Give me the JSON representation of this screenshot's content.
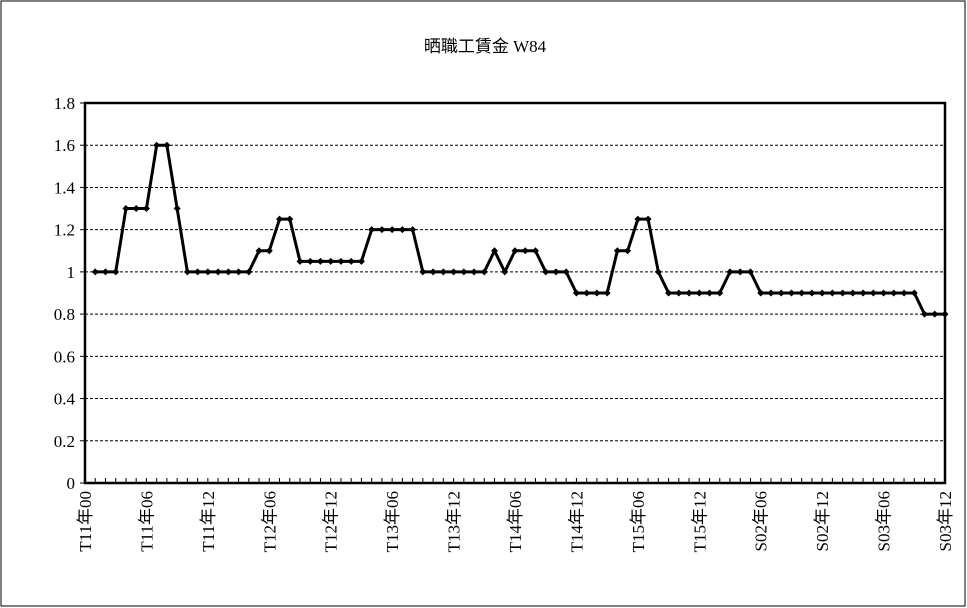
{
  "chart_data": {
    "type": "line",
    "title": "晒職工賃金 W84",
    "categories": [
      "T11年00",
      null,
      null,
      null,
      null,
      null,
      "T11年06",
      null,
      null,
      null,
      null,
      null,
      "T11年12",
      null,
      null,
      null,
      null,
      null,
      "T12年06",
      null,
      null,
      null,
      null,
      null,
      "T12年12",
      null,
      null,
      null,
      null,
      null,
      "T13年06",
      null,
      null,
      null,
      null,
      null,
      "T13年12",
      null,
      null,
      null,
      null,
      null,
      "T14年06",
      null,
      null,
      null,
      null,
      null,
      "T14年12",
      null,
      null,
      null,
      null,
      null,
      "T15年06",
      null,
      null,
      null,
      null,
      null,
      "T15年12",
      null,
      null,
      null,
      null,
      null,
      "S02年06",
      null,
      null,
      null,
      null,
      null,
      "S02年12",
      null,
      null,
      null,
      null,
      null,
      "S03年06",
      null,
      null,
      null,
      null,
      null,
      "S03年12"
    ],
    "values": [
      null,
      1.0,
      1.0,
      1.0,
      1.3,
      1.3,
      1.3,
      1.6,
      1.6,
      1.3,
      1.0,
      1.0,
      1.0,
      1.0,
      1.0,
      1.0,
      1.0,
      1.1,
      1.1,
      1.25,
      1.25,
      1.05,
      1.05,
      1.05,
      1.05,
      1.05,
      1.05,
      1.05,
      1.2,
      1.2,
      1.2,
      1.2,
      1.2,
      1.0,
      1.0,
      1.0,
      1.0,
      1.0,
      1.0,
      1.0,
      1.1,
      1.0,
      1.1,
      1.1,
      1.1,
      1.0,
      1.0,
      1.0,
      0.9,
      0.9,
      0.9,
      0.9,
      1.1,
      1.1,
      1.25,
      1.25,
      1.0,
      0.9,
      0.9,
      0.9,
      0.9,
      0.9,
      0.9,
      1.0,
      1.0,
      1.0,
      0.9,
      0.9,
      0.9,
      0.9,
      0.9,
      0.9,
      0.9,
      0.9,
      0.9,
      0.9,
      0.9,
      0.9,
      0.9,
      0.9,
      0.9,
      0.9,
      0.8,
      0.8,
      0.8
    ],
    "color": "#000000",
    "ylim": [
      0,
      1.8
    ],
    "yticks": [
      0,
      0.2,
      0.4,
      0.6,
      0.8,
      1,
      1.2,
      1.4,
      1.6,
      1.8
    ],
    "grid": true
  }
}
